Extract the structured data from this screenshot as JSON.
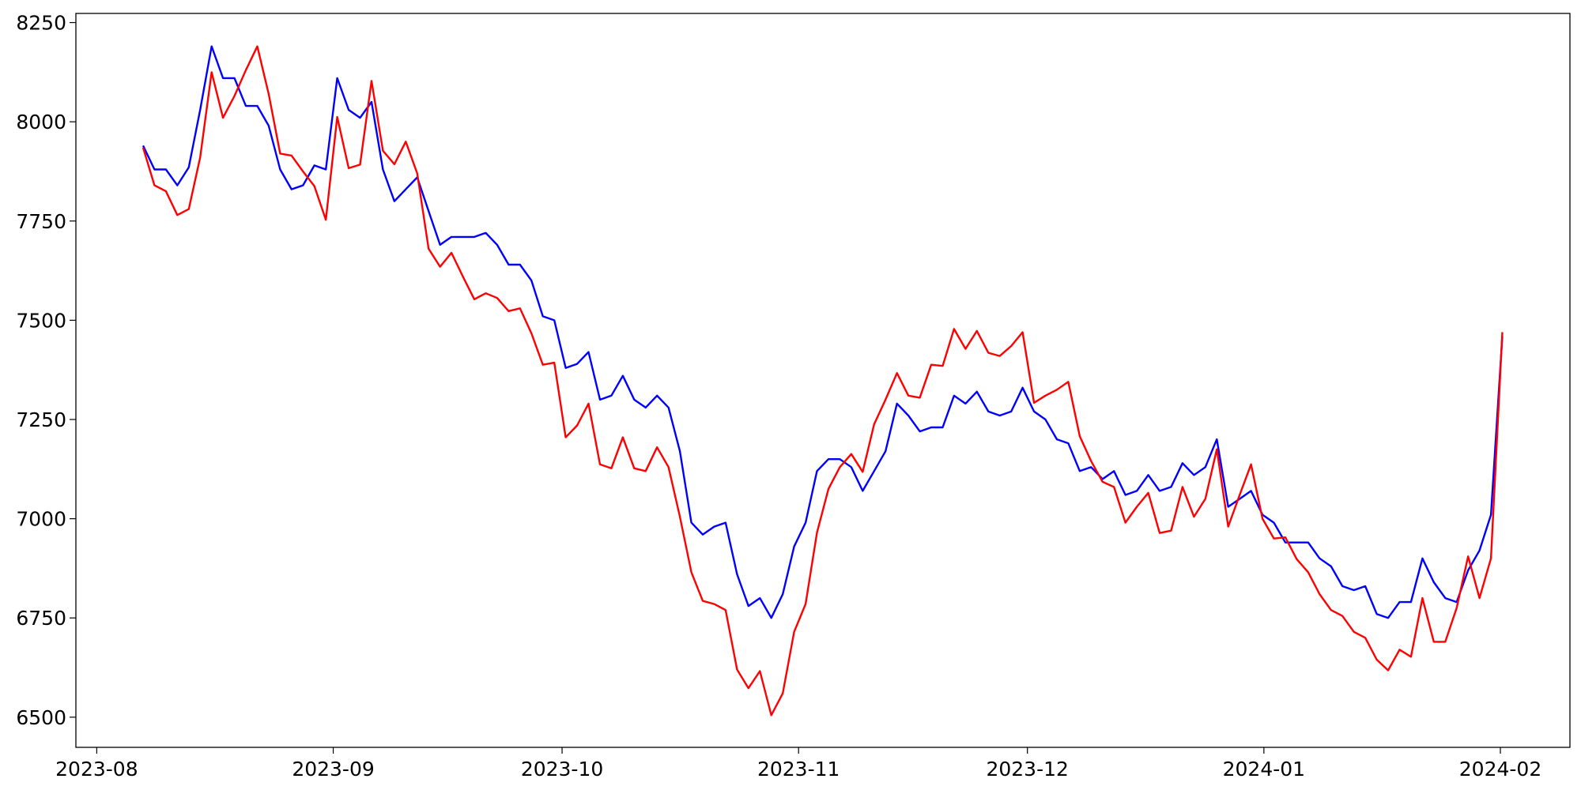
{
  "chart_data": {
    "type": "line",
    "xticks": [
      "2023-08",
      "2023-09",
      "2023-10",
      "2023-11",
      "2023-12",
      "2024-01",
      "2024-02"
    ],
    "ylim": [
      6424,
      8273
    ],
    "yticks": [
      6500,
      6750,
      7000,
      7250,
      7500,
      7750,
      8000,
      8250
    ],
    "series": [
      {
        "color": "#0000ff",
        "values": [
          7940,
          7880,
          7880,
          7840,
          7885,
          8030,
          8190,
          8110,
          8110,
          8040,
          8040,
          7990,
          7880,
          7830,
          7840,
          7890,
          7880,
          8110,
          8030,
          8010,
          8050,
          7880,
          7800,
          7830,
          7860,
          7775,
          7690,
          7710,
          7710,
          7710,
          7720,
          7690,
          7640,
          7640,
          7600,
          7510,
          7500,
          7380,
          7390,
          7420,
          7300,
          7310,
          7360,
          7300,
          7280,
          7310,
          7280,
          7170,
          6990,
          6960,
          6980,
          6990,
          6860,
          6780,
          6800,
          6750,
          6810,
          6930,
          6990,
          7120,
          7150,
          7150,
          7130,
          7070,
          7120,
          7170,
          7290,
          7260,
          7220,
          7230,
          7230,
          7310,
          7290,
          7320,
          7270,
          7260,
          7270,
          7330,
          7270,
          7250,
          7200,
          7190,
          7120,
          7130,
          7100,
          7120,
          7060,
          7070,
          7110,
          7070,
          7080,
          7140,
          7110,
          7130,
          7200,
          7030,
          7050,
          7070,
          7010,
          6990,
          6940,
          6940,
          6940,
          6900,
          6880,
          6830,
          6820,
          6830,
          6760,
          6750,
          6790,
          6790,
          6900,
          6840,
          6800,
          6790,
          6870,
          6920,
          7010,
          7460
        ]
      },
      {
        "color": "#ff0000",
        "values": [
          7935,
          7840,
          7825,
          7765,
          7780,
          7910,
          8125,
          8010,
          8065,
          8130,
          8190,
          8070,
          7920,
          7915,
          7875,
          7838,
          7753,
          8012,
          7883,
          7892,
          8103,
          7927,
          7893,
          7950,
          7870,
          7680,
          7635,
          7670,
          7610,
          7553,
          7568,
          7556,
          7523,
          7530,
          7467,
          7388,
          7393,
          7205,
          7235,
          7290,
          7137,
          7127,
          7205,
          7127,
          7120,
          7180,
          7130,
          7005,
          6865,
          6793,
          6785,
          6770,
          6620,
          6573,
          6616,
          6505,
          6560,
          6715,
          6785,
          6965,
          7075,
          7130,
          7163,
          7118,
          7238,
          7300,
          7367,
          7310,
          7305,
          7388,
          7385,
          7478,
          7428,
          7473,
          7418,
          7410,
          7435,
          7470,
          7292,
          7310,
          7325,
          7345,
          7208,
          7145,
          7093,
          7080,
          6990,
          7030,
          7065,
          6964,
          6970,
          7080,
          7005,
          7050,
          7175,
          6980,
          7060,
          7137,
          7000,
          6950,
          6953,
          6898,
          6865,
          6810,
          6770,
          6755,
          6715,
          6700,
          6645,
          6618,
          6670,
          6652,
          6800,
          6690,
          6690,
          6775,
          6905,
          6800,
          6900,
          7470
        ]
      }
    ]
  }
}
